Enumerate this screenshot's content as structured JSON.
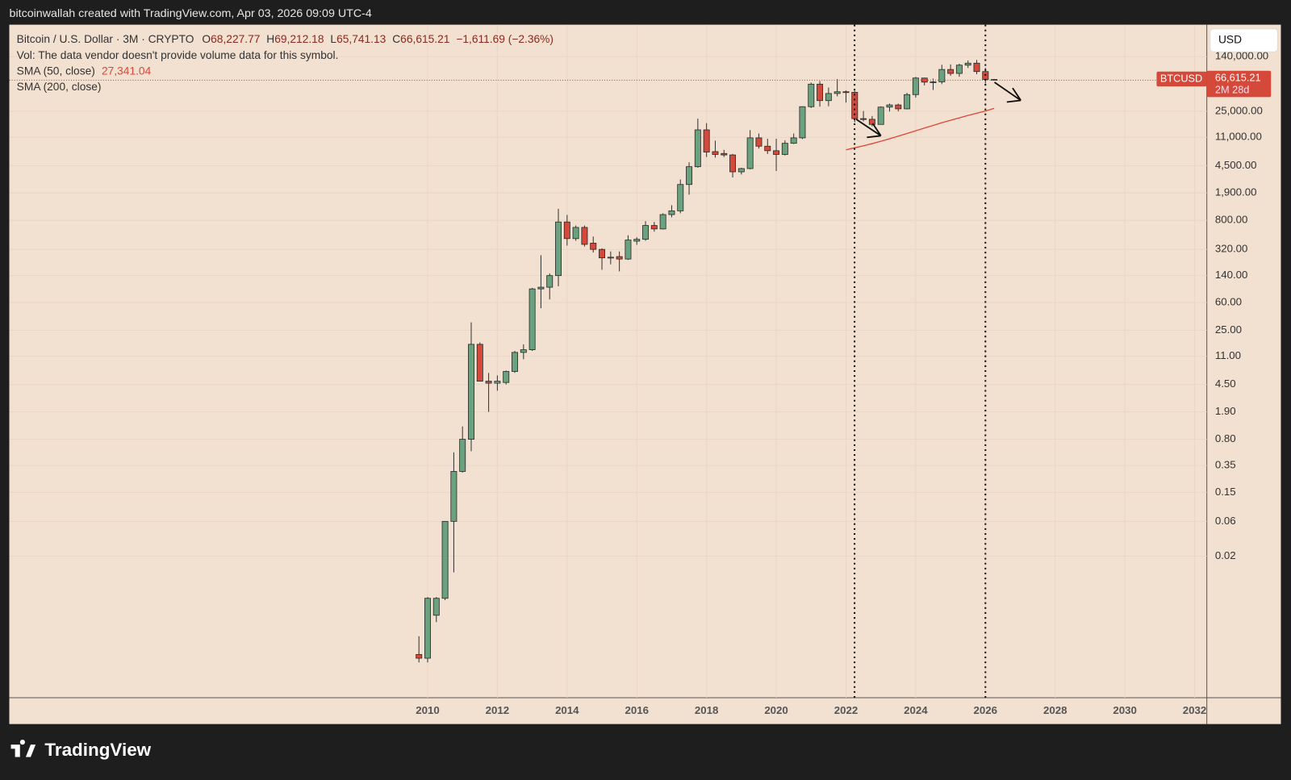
{
  "header": {
    "credit": "bitcoinwallah created with TradingView.com, Apr 03, 2026 09:09 UTC-4"
  },
  "footer": {
    "logo": "TradingView"
  },
  "toolbar": {
    "currency": "USD"
  },
  "chart_data": {
    "type": "candlestick",
    "title": "Bitcoin / U.S. Dollar · 3M · CRYPTO",
    "ohlc_legend": {
      "open_label": "O",
      "open": "68,227.77",
      "high_label": "H",
      "high": "69,212.18",
      "low_label": "L",
      "low": "65,741.13",
      "close_label": "C",
      "close": "66,615.21",
      "change": "−1,611.69 (−2.36%)"
    },
    "volume_note": "Vol: The data vendor doesn't provide volume data for this symbol.",
    "x": [
      2009.75,
      2010,
      2010.25,
      2010.5,
      2010.75,
      2011,
      2011.25,
      2011.5,
      2011.75,
      2012,
      2012.25,
      2012.5,
      2012.75,
      2013,
      2013.25,
      2013.5,
      2013.75,
      2014,
      2014.25,
      2014.5,
      2014.75,
      2015,
      2015.25,
      2015.5,
      2015.75,
      2016,
      2016.25,
      2016.5,
      2016.75,
      2017,
      2017.25,
      2017.5,
      2017.75,
      2018,
      2018.25,
      2018.5,
      2018.75,
      2019,
      2019.25,
      2019.5,
      2019.75,
      2020,
      2020.25,
      2020.5,
      2020.75,
      2021,
      2021.25,
      2021.5,
      2021.75,
      2022,
      2022.25,
      2022.5,
      2022.75,
      2023,
      2023.25,
      2023.5,
      2023.75,
      2024,
      2024.25,
      2024.5,
      2024.75,
      2025,
      2025.25,
      2025.5,
      2025.75,
      2026,
      2026.25
    ],
    "open": [
      0.0009,
      0.0008,
      0.0031,
      0.0053,
      0.06,
      0.29,
      0.8,
      16,
      5,
      4.7,
      4.8,
      6.8,
      12.4,
      13.5,
      92,
      97,
      140,
      760,
      450,
      640,
      390,
      320,
      245,
      255,
      236,
      415,
      440,
      680,
      610,
      960,
      1080,
      2480,
      4350,
      13900,
      7000,
      6600,
      6300,
      3700,
      4100,
      10800,
      8300,
      7200,
      6400,
      9100,
      10800,
      28900,
      58800,
      35000,
      43800,
      46300,
      45500,
      19800,
      19400,
      16500,
      28500,
      30500,
      27000,
      42300,
      71300,
      62700,
      63300,
      93400,
      82500,
      107100,
      114000,
      87500,
      68227.77
    ],
    "high": [
      0.0016,
      0.0055,
      0.0055,
      0.06,
      0.53,
      1.2,
      32,
      17,
      6.5,
      6,
      7,
      13,
      16,
      95,
      266,
      150,
      1150,
      950,
      680,
      680,
      480,
      330,
      300,
      300,
      500,
      470,
      780,
      760,
      1000,
      1290,
      2900,
      5000,
      19800,
      17200,
      9900,
      7400,
      6500,
      4200,
      13800,
      12400,
      10500,
      10500,
      10000,
      12400,
      29300,
      61800,
      64800,
      52900,
      69000,
      48200,
      47400,
      25200,
      21500,
      29200,
      31800,
      31800,
      44700,
      73800,
      72000,
      70000,
      108300,
      109600,
      111900,
      124100,
      126200,
      97900,
      69212.18
    ],
    "low": [
      0.0007,
      0.0007,
      0.0025,
      0.005,
      0.012,
      0.28,
      0.55,
      5,
      1.9,
      3.7,
      4.5,
      6.5,
      10,
      13,
      50,
      66,
      100,
      360,
      420,
      350,
      290,
      168,
      200,
      160,
      230,
      370,
      420,
      560,
      600,
      880,
      1000,
      1800,
      4200,
      5900,
      5800,
      5900,
      3100,
      3400,
      4000,
      7700,
      6500,
      3800,
      6200,
      8900,
      10400,
      27700,
      28900,
      29300,
      40000,
      32900,
      17600,
      18200,
      15500,
      16500,
      24800,
      24900,
      26500,
      38500,
      56500,
      49000,
      58900,
      76600,
      74400,
      98200,
      80600,
      60000,
      65741.13
    ],
    "close": [
      0.0008,
      0.0053,
      0.0053,
      0.06,
      0.29,
      0.8,
      16,
      5,
      4.7,
      5,
      6.8,
      12.4,
      13.5,
      92,
      97,
      140,
      760,
      450,
      640,
      375,
      320,
      245,
      250,
      236,
      430,
      440,
      680,
      610,
      960,
      1080,
      2480,
      4350,
      13900,
      6900,
      6400,
      6300,
      3700,
      4100,
      10800,
      8300,
      7200,
      6400,
      9100,
      10800,
      28900,
      58800,
      35000,
      43800,
      46300,
      45500,
      19800,
      19400,
      16500,
      28500,
      30500,
      27000,
      42300,
      71300,
      62700,
      63300,
      93400,
      82500,
      107100,
      114000,
      87500,
      68227.77,
      66615.21
    ],
    "up_color": "#6aa27f",
    "down_color": "#d4493a",
    "sma": {
      "name": "SMA (50, close)",
      "value_label": "27,341.04",
      "color": "#e0453a",
      "values": [
        null,
        null,
        null,
        null,
        null,
        null,
        null,
        null,
        null,
        null,
        null,
        null,
        null,
        null,
        null,
        null,
        null,
        null,
        null,
        null,
        null,
        null,
        null,
        null,
        null,
        null,
        null,
        null,
        null,
        null,
        null,
        null,
        null,
        null,
        null,
        null,
        null,
        null,
        null,
        null,
        null,
        null,
        null,
        null,
        null,
        null,
        null,
        null,
        null,
        7400,
        7900,
        8400,
        9000,
        9700,
        10500,
        11400,
        12400,
        13500,
        14700,
        16000,
        17400,
        18800,
        20300,
        21900,
        23500,
        25200,
        27341.04
      ]
    },
    "sma200": {
      "name": "SMA (200, close)"
    },
    "price_tag": {
      "symbol": "BTCUSD",
      "value_label": "66,615.21",
      "countdown": "2M 28d"
    },
    "log_scale": true,
    "grid": true,
    "xlim": [
      1998.0,
      2032.35
    ],
    "xticks": [
      2010,
      2012,
      2014,
      2016,
      2018,
      2020,
      2022,
      2024,
      2026,
      2028,
      2030,
      2032
    ],
    "ylim": [
      0.00023,
      384000
    ],
    "yticks": [
      0.02,
      0.06,
      0.15,
      0.35,
      {
        "value": 0.8,
        "label": "0.80"
      },
      {
        "value": 1.9,
        "label": "1.90"
      },
      {
        "value": 4.5,
        "label": "4.50"
      },
      {
        "value": 11,
        "label": "11.00"
      },
      {
        "value": 25,
        "label": "25.00"
      },
      {
        "value": 60,
        "label": "60.00"
      },
      {
        "value": 140,
        "label": "140.00"
      },
      {
        "value": 320,
        "label": "320.00"
      },
      {
        "value": 800,
        "label": "800.00"
      },
      {
        "value": 1900,
        "label": "1,900.00"
      },
      {
        "value": 4500,
        "label": "4,500.00"
      },
      {
        "value": 11000,
        "label": "11,000.00"
      },
      {
        "value": 25000,
        "label": "25,000.00"
      },
      {
        "value": 140000,
        "label": "140,000.00"
      }
    ]
  }
}
